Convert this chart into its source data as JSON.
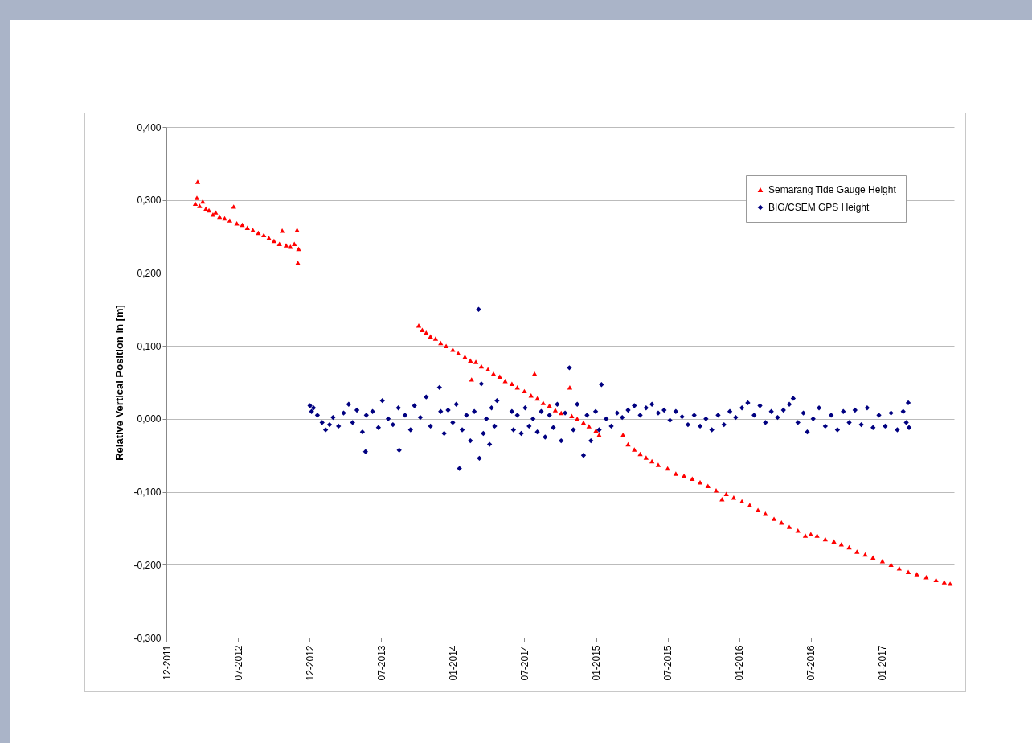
{
  "chart_data": {
    "type": "scatter",
    "ylabel": "Relative Vertical Position in [m]",
    "legend": "top right",
    "grid": "y",
    "xlim": [
      "2011-12-31",
      "2017-07-05"
    ],
    "xticks": [
      {
        "value": "2011-12-31",
        "label": "12-2011"
      },
      {
        "value": "2012-07-01",
        "label": "07-2012"
      },
      {
        "value": "2012-12-31",
        "label": "12-2012"
      },
      {
        "value": "2013-07-02",
        "label": "07-2013"
      },
      {
        "value": "2014-01-01",
        "label": "01-2014"
      },
      {
        "value": "2014-07-03",
        "label": "07-2014"
      },
      {
        "value": "2015-01-02",
        "label": "01-2015"
      },
      {
        "value": "2015-07-04",
        "label": "07-2015"
      },
      {
        "value": "2016-01-03",
        "label": "01-2016"
      },
      {
        "value": "2016-07-04",
        "label": "07-2016"
      },
      {
        "value": "2017-01-03",
        "label": "01-2017"
      }
    ],
    "ylim": [
      -0.3,
      0.4
    ],
    "yticks": [
      {
        "value": -0.3,
        "label": "-0,300"
      },
      {
        "value": -0.2,
        "label": "-0,200"
      },
      {
        "value": -0.1,
        "label": "-0,100"
      },
      {
        "value": 0,
        "label": "0,000"
      },
      {
        "value": 0.1,
        "label": "0,100"
      },
      {
        "value": 0.2,
        "label": "0,200"
      },
      {
        "value": 0.3,
        "label": "0,300"
      },
      {
        "value": 0.4,
        "label": "0,400"
      }
    ],
    "series": [
      {
        "name": "Semarang Tide Gauge Height",
        "color": "#ff0000",
        "marker": "triangle",
        "x": [
          "2012-03-14",
          "2012-03-18",
          "2012-03-20",
          "2012-03-25",
          "2012-04-02",
          "2012-04-10",
          "2012-04-18",
          "2012-04-28",
          "2012-05-05",
          "2012-05-15",
          "2012-05-28",
          "2012-06-10",
          "2012-06-20",
          "2012-06-28",
          "2012-07-12",
          "2012-07-25",
          "2012-08-08",
          "2012-08-22",
          "2012-09-05",
          "2012-09-18",
          "2012-10-01",
          "2012-10-15",
          "2012-10-22",
          "2012-11-01",
          "2012-11-12",
          "2012-11-22",
          "2012-11-29",
          "2012-12-01",
          "2012-12-03",
          "2013-10-06",
          "2013-10-15",
          "2013-10-25",
          "2013-11-05",
          "2013-11-18",
          "2013-12-01",
          "2013-12-15",
          "2014-01-01",
          "2014-01-15",
          "2014-02-01",
          "2014-02-15",
          "2014-02-18",
          "2014-03-01",
          "2014-03-15",
          "2014-04-01",
          "2014-04-15",
          "2014-05-01",
          "2014-05-15",
          "2014-06-01",
          "2014-06-15",
          "2014-07-03",
          "2014-07-20",
          "2014-07-29",
          "2014-08-05",
          "2014-08-20",
          "2014-09-05",
          "2014-09-20",
          "2014-10-05",
          "2014-10-27",
          "2014-11-01",
          "2014-11-15",
          "2014-12-01",
          "2014-12-15",
          "2015-01-02",
          "2015-01-10",
          "2015-03-12",
          "2015-03-25",
          "2015-04-10",
          "2015-04-25",
          "2015-05-10",
          "2015-05-25",
          "2015-06-10",
          "2015-07-04",
          "2015-07-25",
          "2015-08-15",
          "2015-09-05",
          "2015-09-25",
          "2015-10-15",
          "2015-11-05",
          "2015-11-20",
          "2015-12-01",
          "2015-12-20",
          "2016-01-10",
          "2016-01-30",
          "2016-02-20",
          "2016-03-10",
          "2016-04-01",
          "2016-04-20",
          "2016-05-10",
          "2016-06-01",
          "2016-06-20",
          "2016-07-04",
          "2016-07-20",
          "2016-08-10",
          "2016-09-01",
          "2016-09-20",
          "2016-10-10",
          "2016-10-30",
          "2016-11-20",
          "2016-12-10",
          "2017-01-03",
          "2017-01-25",
          "2017-02-15",
          "2017-03-10",
          "2017-04-01",
          "2017-04-25",
          "2017-05-20",
          "2017-06-10",
          "2017-06-25"
        ],
        "values": [
          0.295,
          0.303,
          0.325,
          0.292,
          0.298,
          0.288,
          0.286,
          0.28,
          0.283,
          0.277,
          0.275,
          0.272,
          0.291,
          0.268,
          0.266,
          0.262,
          0.259,
          0.255,
          0.252,
          0.248,
          0.244,
          0.24,
          0.258,
          0.238,
          0.236,
          0.24,
          0.259,
          0.214,
          0.233,
          0.128,
          0.122,
          0.118,
          0.113,
          0.11,
          0.104,
          0.1,
          0.095,
          0.09,
          0.085,
          0.08,
          0.054,
          0.078,
          0.072,
          0.068,
          0.062,
          0.058,
          0.052,
          0.048,
          0.043,
          0.038,
          0.032,
          0.062,
          0.028,
          0.022,
          0.018,
          0.012,
          0.008,
          0.043,
          0.004,
          0,
          -0.005,
          -0.01,
          -0.016,
          -0.022,
          -0.022,
          -0.035,
          -0.042,
          -0.048,
          -0.053,
          -0.058,
          -0.063,
          -0.068,
          -0.075,
          -0.078,
          -0.082,
          -0.087,
          -0.092,
          -0.098,
          -0.11,
          -0.103,
          -0.108,
          -0.113,
          -0.118,
          -0.125,
          -0.13,
          -0.137,
          -0.142,
          -0.148,
          -0.153,
          -0.16,
          -0.158,
          -0.16,
          -0.165,
          -0.168,
          -0.172,
          -0.176,
          -0.182,
          -0.186,
          -0.19,
          -0.195,
          -0.2,
          -0.205,
          -0.21,
          -0.213,
          -0.217,
          -0.221,
          -0.224,
          -0.226
        ]
      },
      {
        "name": "BIG/CSEM GPS Height",
        "color": "#000080",
        "marker": "diamond",
        "x": [
          "2013-01-01",
          "2013-01-05",
          "2013-01-10",
          "2013-01-20",
          "2013-02-01",
          "2013-02-10",
          "2013-02-20",
          "2013-03-01",
          "2013-03-15",
          "2013-03-28",
          "2013-04-10",
          "2013-04-20",
          "2013-05-01",
          "2013-05-15",
          "2013-05-23",
          "2013-05-25",
          "2013-06-10",
          "2013-06-25",
          "2013-07-05",
          "2013-07-20",
          "2013-08-01",
          "2013-08-15",
          "2013-08-17",
          "2013-09-01",
          "2013-09-15",
          "2013-09-25",
          "2013-10-10",
          "2013-10-25",
          "2013-11-05",
          "2013-11-28",
          "2013-12-01",
          "2013-12-10",
          "2013-12-20",
          "2014-01-01",
          "2014-01-10",
          "2014-01-18",
          "2014-01-25",
          "2014-02-05",
          "2014-02-15",
          "2014-02-25",
          "2014-03-08",
          "2014-03-10",
          "2014-03-15",
          "2014-03-20",
          "2014-03-28",
          "2014-04-05",
          "2014-04-10",
          "2014-04-18",
          "2014-04-24",
          "2014-06-01",
          "2014-06-05",
          "2014-06-15",
          "2014-06-25",
          "2014-07-05",
          "2014-07-15",
          "2014-07-25",
          "2014-08-05",
          "2014-08-15",
          "2014-08-25",
          "2014-09-05",
          "2014-09-15",
          "2014-09-25",
          "2014-10-05",
          "2014-10-15",
          "2014-10-26",
          "2014-11-05",
          "2014-11-15",
          "2014-12-01",
          "2014-12-10",
          "2014-12-20",
          "2015-01-01",
          "2015-01-10",
          "2015-01-16",
          "2015-01-28",
          "2015-02-10",
          "2015-02-25",
          "2015-03-10",
          "2015-03-25",
          "2015-04-10",
          "2015-04-25",
          "2015-05-10",
          "2015-05-25",
          "2015-06-10",
          "2015-06-25",
          "2015-07-10",
          "2015-07-25",
          "2015-08-10",
          "2015-08-25",
          "2015-09-10",
          "2015-09-25",
          "2015-10-10",
          "2015-10-25",
          "2015-11-10",
          "2015-11-25",
          "2015-12-10",
          "2015-12-25",
          "2016-01-10",
          "2016-01-25",
          "2016-02-10",
          "2016-02-25",
          "2016-03-10",
          "2016-03-25",
          "2016-04-10",
          "2016-04-25",
          "2016-05-10",
          "2016-05-20",
          "2016-06-01",
          "2016-06-15",
          "2016-06-25",
          "2016-07-10",
          "2016-07-25",
          "2016-08-10",
          "2016-08-25",
          "2016-09-10",
          "2016-09-25",
          "2016-10-10",
          "2016-10-25",
          "2016-11-10",
          "2016-11-25",
          "2016-12-10",
          "2016-12-25",
          "2017-01-10",
          "2017-01-25",
          "2017-02-10",
          "2017-02-25",
          "2017-03-05",
          "2017-03-10",
          "2017-03-12"
        ],
        "values": [
          0.018,
          0.01,
          0.015,
          0.005,
          -0.005,
          -0.015,
          -0.008,
          0.002,
          -0.01,
          0.008,
          0.02,
          -0.005,
          0.012,
          -0.018,
          -0.045,
          0.005,
          0.01,
          -0.012,
          0.025,
          0,
          -0.008,
          0.015,
          -0.043,
          0.005,
          -0.015,
          0.018,
          0.002,
          0.03,
          -0.01,
          0.043,
          0.01,
          -0.02,
          0.012,
          -0.005,
          0.02,
          -0.068,
          -0.015,
          0.005,
          -0.03,
          0.01,
          0.15,
          -0.054,
          0.048,
          -0.02,
          0,
          -0.035,
          0.015,
          -0.01,
          0.025,
          0.01,
          -0.015,
          0.005,
          -0.02,
          0.015,
          -0.01,
          0,
          -0.018,
          0.01,
          -0.025,
          0.005,
          -0.012,
          0.02,
          -0.03,
          0.008,
          0.07,
          -0.015,
          0.02,
          -0.05,
          0.005,
          -0.03,
          0.01,
          -0.015,
          0.047,
          0,
          -0.01,
          0.008,
          0.002,
          0.012,
          0.018,
          0.005,
          0.015,
          0.02,
          0.008,
          0.012,
          -0.002,
          0.01,
          0.003,
          -0.008,
          0.005,
          -0.01,
          0,
          -0.015,
          0.005,
          -0.008,
          0.01,
          0.002,
          0.015,
          0.022,
          0.005,
          0.018,
          -0.005,
          0.01,
          0.002,
          0.012,
          0.02,
          0.028,
          -0.005,
          0.008,
          -0.018,
          0,
          0.015,
          -0.01,
          0.005,
          -0.015,
          0.01,
          -0.005,
          0.012,
          -0.008,
          0.015,
          -0.012,
          0.005,
          -0.01,
          0.008,
          -0.015,
          0.01,
          -0.005,
          0.022,
          -0.012
        ]
      }
    ]
  }
}
